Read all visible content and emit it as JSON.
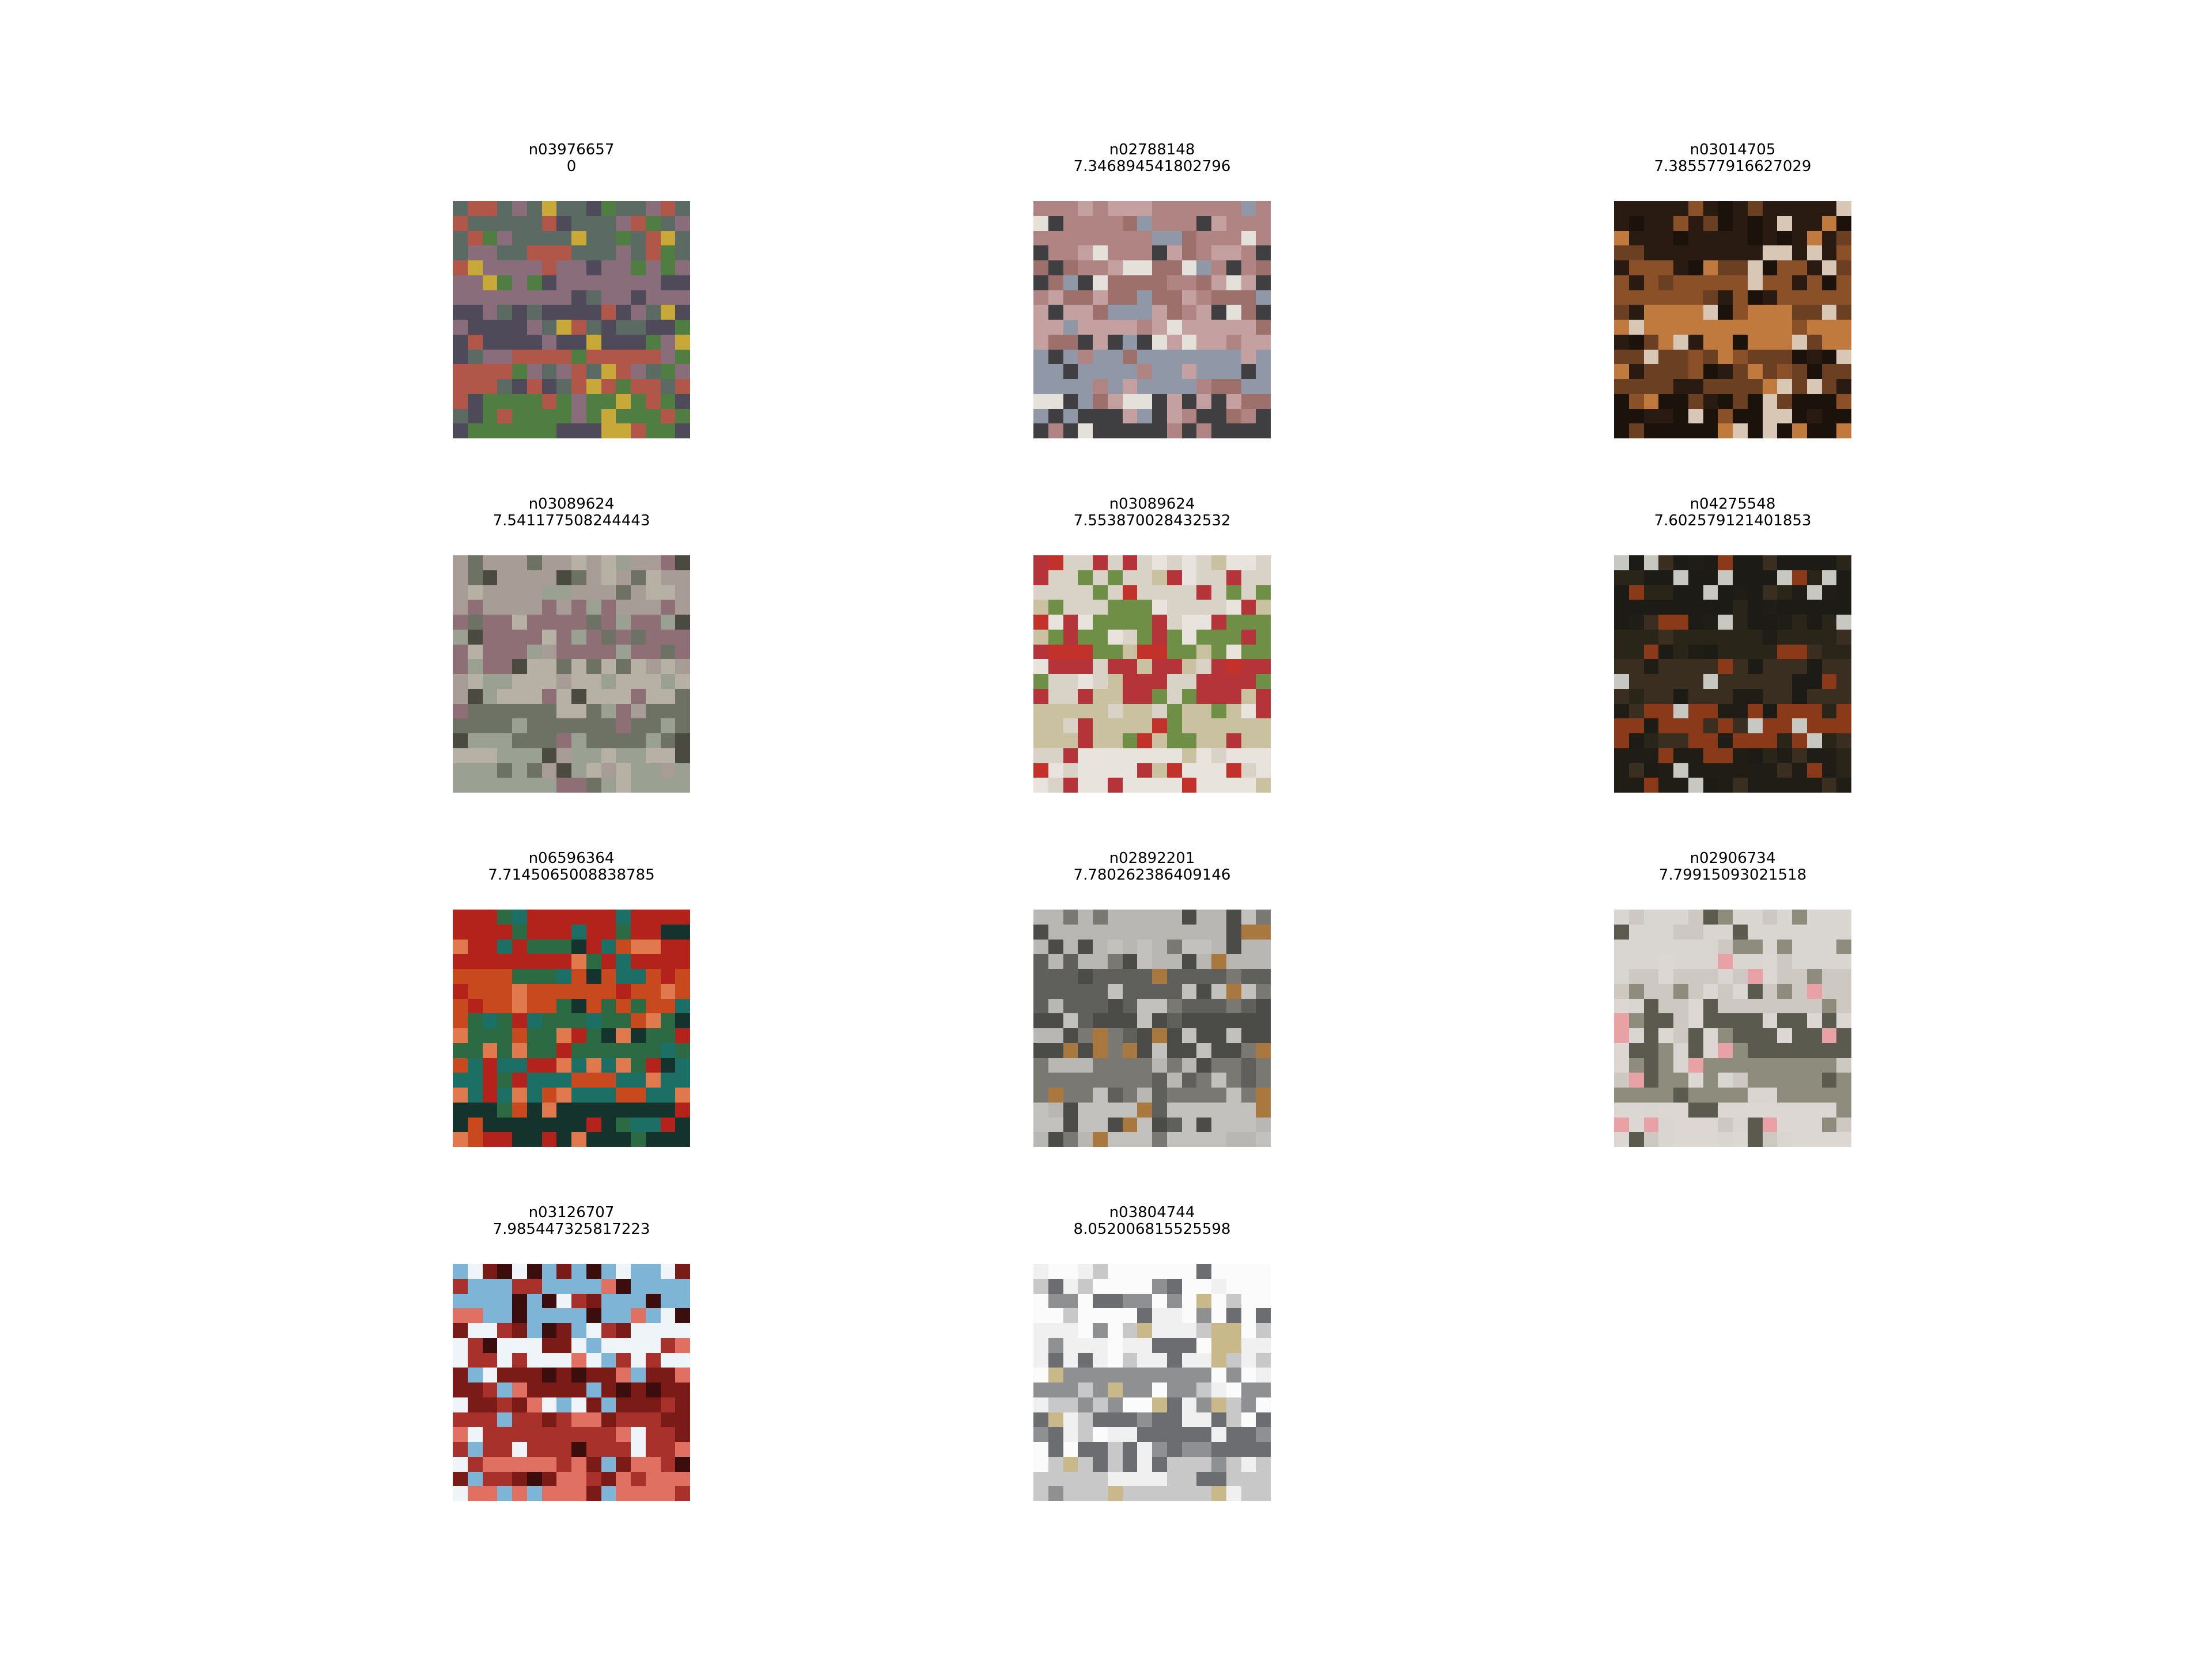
{
  "items": [
    {
      "id": "n03976657",
      "score": "0",
      "colors": [
        "#5b6a62",
        "#8a6d7a",
        "#4f4a5a",
        "#b0574a",
        "#4f7d42"
      ],
      "accent": "#c9a83a"
    },
    {
      "id": "n02788148",
      "score": "7.346894541802796",
      "colors": [
        "#b08482",
        "#9d706c",
        "#c4a1a0",
        "#9098a8",
        "#3f3f42"
      ],
      "accent": "#e4e0da"
    },
    {
      "id": "n03014705",
      "score": "7.385577916627029",
      "colors": [
        "#2a1b12",
        "#8a5128",
        "#c07a3e",
        "#6a3f22",
        "#1b120c"
      ],
      "accent": "#d9c7b5"
    },
    {
      "id": "n03089624",
      "score": "7.541177508244443",
      "colors": [
        "#a89c96",
        "#8f6f76",
        "#b7b0a5",
        "#6d7264",
        "#9aa092"
      ],
      "accent": "#4a4a40"
    },
    {
      "id": "n03089624",
      "score": "7.553870028432532",
      "colors": [
        "#d8d3c6",
        "#6f8f46",
        "#b5343a",
        "#c9c19f",
        "#e8e3dc"
      ],
      "accent": "#c2322a"
    },
    {
      "id": "n04275548",
      "score": "7.602579121401853",
      "colors": [
        "#1d1b15",
        "#2a2519",
        "#3a2e20",
        "#8a3a18",
        "#201d17"
      ],
      "accent": "#c8c8c2"
    },
    {
      "id": "n06596364",
      "score": "7.7145065008838785",
      "colors": [
        "#b3231c",
        "#c8491e",
        "#2b6a43",
        "#1c6f64",
        "#14332c"
      ],
      "accent": "#e07a4e"
    },
    {
      "id": "n02892201",
      "score": "7.780262386409146",
      "colors": [
        "#b9b7b3",
        "#5f605c",
        "#4b4c48",
        "#7a7873",
        "#c3c1bd"
      ],
      "accent": "#a9783e"
    },
    {
      "id": "n02906734",
      "score": "7.79915093021518",
      "colors": [
        "#d9d5d0",
        "#cdc8c2",
        "#5a5b4e",
        "#8e8c7c",
        "#dcd7d2"
      ],
      "accent": "#e8a1a5"
    },
    {
      "id": "n03126707",
      "score": "7.985447325817223",
      "colors": [
        "#7eb5d6",
        "#eef4f8",
        "#7a1b17",
        "#a8322b",
        "#e07062"
      ],
      "accent": "#3b0d0c"
    },
    {
      "id": "n03804744",
      "score": "8.052006815525598",
      "colors": [
        "#fbfbfb",
        "#f0f0f0",
        "#8f9092",
        "#6c6d70",
        "#c8c8c8"
      ],
      "accent": "#c9b889"
    }
  ]
}
